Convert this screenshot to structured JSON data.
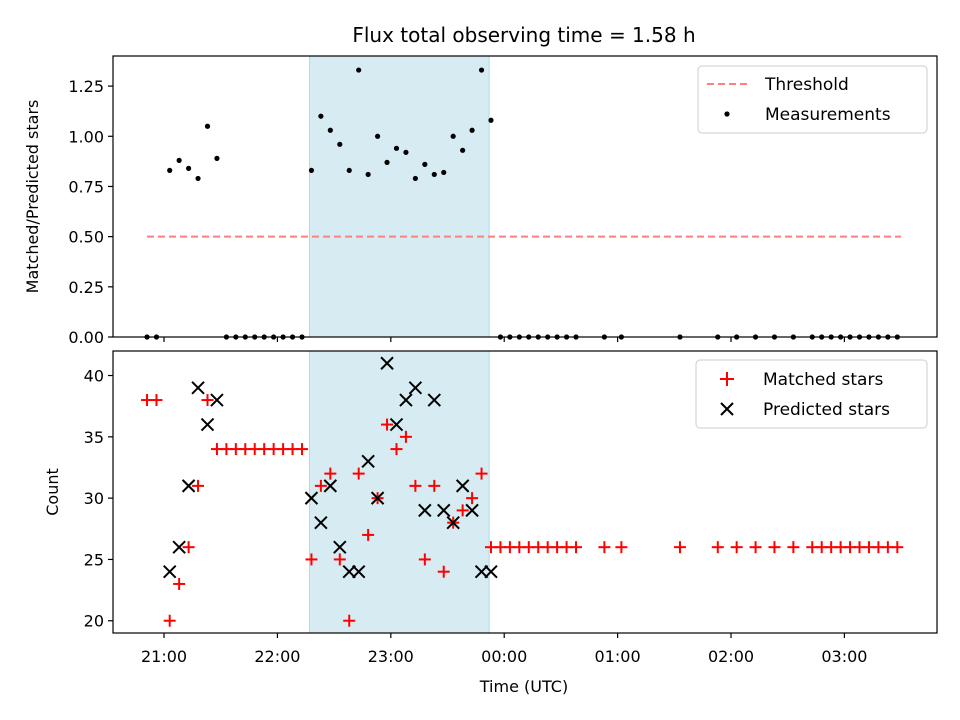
{
  "title": "Flux total observing time = 1.58 h",
  "xlabel": "Time (UTC)",
  "colors": {
    "threshold": "#ff7f7f",
    "measurement": "#000000",
    "matched": "#ff0000",
    "predicted": "#000000",
    "span": "#add8e6"
  },
  "chart_data": [
    {
      "type": "scatter",
      "ylabel": "Matched/Predicted stars",
      "xlim": [
        "20:33",
        "03:49"
      ],
      "ylim": [
        0,
        1.4
      ],
      "yticks": [
        "0.00",
        "0.25",
        "0.50",
        "0.75",
        "1.00",
        "1.25"
      ],
      "shaded_span": [
        "22:17",
        "23:52"
      ],
      "legend": {
        "placement": "top-right",
        "entries": [
          "Threshold",
          "Measurements"
        ]
      },
      "series": [
        {
          "name": "Threshold",
          "kind": "dashed-line",
          "x": [
            "20:51",
            "03:30"
          ],
          "y": [
            0.5,
            0.5
          ]
        },
        {
          "name": "Measurements",
          "kind": "points",
          "x": [
            "20:51",
            "20:56",
            "21:03",
            "21:08",
            "21:13",
            "21:18",
            "21:23",
            "21:28",
            "21:33",
            "21:38",
            "21:43",
            "21:48",
            "21:53",
            "21:58",
            "22:03",
            "22:08",
            "22:13",
            "22:18",
            "22:23",
            "22:28",
            "22:33",
            "22:38",
            "22:43",
            "22:48",
            "22:53",
            "22:58",
            "23:03",
            "23:08",
            "23:13",
            "23:18",
            "23:23",
            "23:28",
            "23:33",
            "23:38",
            "23:43",
            "23:48",
            "23:53",
            "23:58",
            "00:03",
            "00:08",
            "00:13",
            "00:18",
            "00:23",
            "00:28",
            "00:33",
            "00:38",
            "00:53",
            "01:02",
            "01:33",
            "01:53",
            "02:03",
            "02:13",
            "02:23",
            "02:33",
            "02:43",
            "02:48",
            "02:53",
            "02:58",
            "03:03",
            "03:08",
            "03:13",
            "03:18",
            "03:23",
            "03:28"
          ],
          "y": [
            0,
            0,
            0.83,
            0.88,
            0.84,
            0.79,
            1.05,
            0.89,
            0,
            0,
            0,
            0,
            0,
            0,
            0,
            0,
            0,
            0.83,
            1.1,
            1.03,
            0.96,
            0.83,
            1.33,
            0.81,
            1.0,
            0.87,
            0.94,
            0.92,
            0.79,
            0.86,
            0.81,
            0.82,
            1.0,
            0.93,
            1.03,
            1.33,
            1.08,
            0,
            0,
            0,
            0,
            0,
            0,
            0,
            0,
            0,
            0,
            0,
            0,
            0,
            0,
            0,
            0,
            0,
            0,
            0,
            0,
            0,
            0,
            0,
            0,
            0,
            0,
            0
          ]
        }
      ]
    },
    {
      "type": "scatter",
      "ylabel": "Count",
      "xlim": [
        "20:33",
        "03:49"
      ],
      "ylim": [
        19,
        42
      ],
      "yticks": [
        "20",
        "25",
        "30",
        "35",
        "40"
      ],
      "xticks": [
        "21:00",
        "22:00",
        "23:00",
        "00:00",
        "01:00",
        "02:00",
        "03:00"
      ],
      "shaded_span": [
        "22:17",
        "23:52"
      ],
      "legend": {
        "placement": "top-right",
        "entries": [
          "Matched stars",
          "Predicted stars"
        ]
      },
      "series": [
        {
          "name": "Matched stars",
          "marker": "plus",
          "x": [
            "20:51",
            "20:56",
            "21:03",
            "21:08",
            "21:13",
            "21:18",
            "21:23",
            "21:28",
            "21:33",
            "21:38",
            "21:43",
            "21:48",
            "21:53",
            "21:58",
            "22:03",
            "22:08",
            "22:13",
            "22:18",
            "22:23",
            "22:28",
            "22:33",
            "22:38",
            "22:43",
            "22:48",
            "22:53",
            "22:58",
            "23:03",
            "23:08",
            "23:13",
            "23:18",
            "23:23",
            "23:28",
            "23:33",
            "23:38",
            "23:43",
            "23:48",
            "23:53",
            "23:58",
            "00:03",
            "00:08",
            "00:13",
            "00:18",
            "00:23",
            "00:28",
            "00:33",
            "00:38",
            "00:53",
            "01:02",
            "01:33",
            "01:53",
            "02:03",
            "02:13",
            "02:23",
            "02:33",
            "02:43",
            "02:48",
            "02:53",
            "02:58",
            "03:03",
            "03:08",
            "03:13",
            "03:18",
            "03:23",
            "03:28"
          ],
          "y": [
            38,
            38,
            20,
            23,
            26,
            31,
            38,
            34,
            34,
            34,
            34,
            34,
            34,
            34,
            34,
            34,
            34,
            25,
            31,
            32,
            25,
            20,
            32,
            27,
            30,
            36,
            34,
            35,
            31,
            25,
            31,
            24,
            28,
            29,
            30,
            32,
            26,
            26,
            26,
            26,
            26,
            26,
            26,
            26,
            26,
            26,
            26,
            26,
            26,
            26,
            26,
            26,
            26,
            26,
            26,
            26,
            26,
            26,
            26,
            26,
            26,
            26,
            26,
            26
          ]
        },
        {
          "name": "Predicted stars",
          "marker": "x",
          "x": [
            "21:03",
            "21:08",
            "21:13",
            "21:18",
            "21:23",
            "21:28",
            "22:18",
            "22:23",
            "22:28",
            "22:33",
            "22:38",
            "22:43",
            "22:48",
            "22:53",
            "22:58",
            "23:03",
            "23:08",
            "23:13",
            "23:18",
            "23:23",
            "23:28",
            "23:33",
            "23:38",
            "23:43",
            "23:48",
            "23:53"
          ],
          "y": [
            24,
            26,
            31,
            39,
            36,
            38,
            30,
            28,
            31,
            26,
            24,
            24,
            33,
            30,
            41,
            36,
            38,
            39,
            29,
            38,
            29,
            28,
            31,
            29,
            24,
            24
          ]
        }
      ]
    }
  ]
}
